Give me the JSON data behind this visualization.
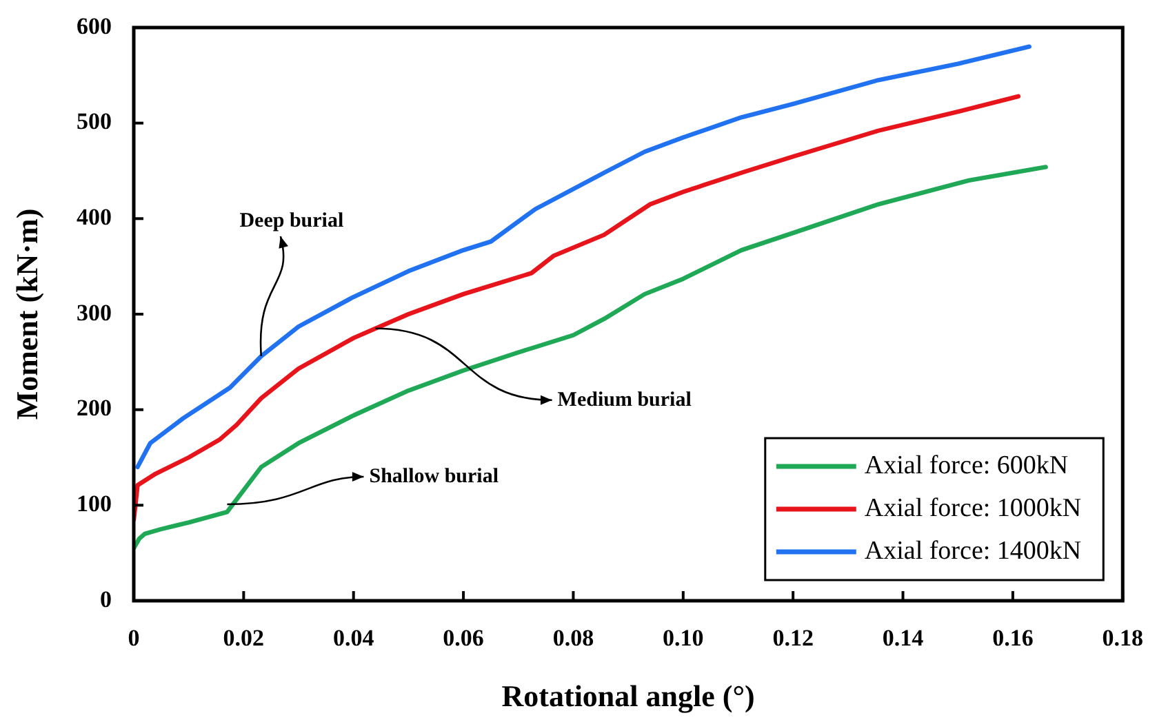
{
  "chart_data": {
    "type": "line",
    "xlabel": "Rotational angle (°)",
    "ylabel": "Moment (kN·m)",
    "xlim": [
      0,
      0.18
    ],
    "xticks": [
      0,
      0.02,
      0.04,
      0.06,
      0.08,
      {
        "value": 0.1,
        "label": "0.10"
      },
      0.12,
      0.14,
      0.16,
      0.18
    ],
    "ylim": [
      0,
      600
    ],
    "yticks": [
      0,
      100,
      200,
      300,
      400,
      500,
      600
    ],
    "grid": false,
    "legend": "bottom right",
    "marker": "none",
    "line_style": "solid",
    "series": [
      {
        "name": "Axial force: 600kN",
        "color": "#1fa855",
        "x": [
          0,
          0.001,
          0.002,
          0.005,
          0.01,
          0.017,
          0.0232,
          0.03,
          0.04,
          0.05,
          0.06,
          0.07,
          0.08,
          0.0856,
          0.093,
          0.1,
          0.1106,
          0.12,
          0.1355,
          0.152,
          0.166
        ],
        "values": [
          55,
          65,
          70,
          75,
          82,
          93,
          140,
          165,
          194,
          220,
          241,
          260,
          278,
          295,
          321,
          337,
          367,
          385,
          415,
          440,
          454
        ]
      },
      {
        "name": "Axial force: 1000kN",
        "color": "#e8141c",
        "x": [
          0,
          0.0007,
          0.004,
          0.01,
          0.0157,
          0.0187,
          0.0232,
          0.03,
          0.04,
          0.05,
          0.06,
          0.0724,
          0.0764,
          0.0856,
          0.094,
          0.1,
          0.1106,
          0.12,
          0.1355,
          0.15,
          0.161
        ],
        "values": [
          85,
          121,
          133,
          150,
          169,
          184,
          212,
          243,
          275,
          300,
          321,
          343,
          361,
          383,
          415,
          428,
          448,
          465,
          492,
          512,
          528
        ]
      },
      {
        "name": "Axial force: 1400kN",
        "color": "#2172f0",
        "x": [
          0.0007,
          0.003,
          0.009,
          0.0175,
          0.0232,
          0.03,
          0.04,
          0.05,
          0.06,
          0.065,
          0.0731,
          0.0856,
          0.093,
          0.1,
          0.1106,
          0.12,
          0.1355,
          0.15,
          0.163
        ],
        "values": [
          140,
          165,
          191,
          223,
          256,
          287,
          318,
          345,
          367,
          376,
          410,
          448,
          470,
          485,
          506,
          520,
          545,
          562,
          580
        ]
      }
    ],
    "annotations": [
      {
        "text": "Deep burial",
        "x": 0.0232,
        "y": 256
      },
      {
        "text": "Medium burial",
        "x": 0.044,
        "y": 285
      },
      {
        "text": "Shallow burial",
        "x": 0.017,
        "y": 101
      }
    ]
  }
}
